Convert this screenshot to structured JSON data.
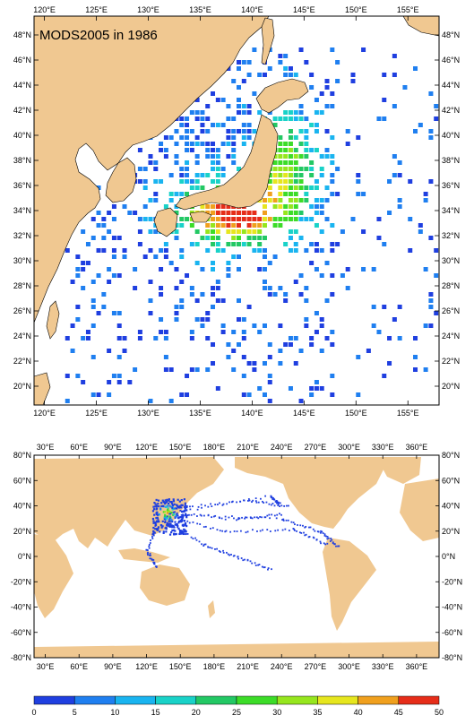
{
  "top_map": {
    "title": "MODS2005 in 1986",
    "lon_labels": [
      "120°E",
      "125°E",
      "130°E",
      "135°E",
      "140°E",
      "145°E",
      "150°E",
      "155°E"
    ],
    "lat_labels": [
      "48°N",
      "46°N",
      "44°N",
      "42°N",
      "40°N",
      "38°N",
      "36°N",
      "34°N",
      "32°N",
      "30°N",
      "28°N",
      "26°N",
      "24°N",
      "22°N",
      "20°N"
    ],
    "lon_range": [
      119,
      158
    ],
    "lat_range": [
      18.5,
      49.5
    ]
  },
  "bottom_map": {
    "lon_labels": [
      "30°E",
      "60°E",
      "90°E",
      "120°E",
      "150°E",
      "180°E",
      "210°E",
      "240°E",
      "270°E",
      "300°E",
      "330°E",
      "360°E"
    ],
    "lat_labels": [
      "80°N",
      "60°N",
      "40°N",
      "20°N",
      "0°N",
      "-20°N",
      "-40°N",
      "-60°N",
      "-80°N"
    ],
    "lon_range": [
      20,
      380
    ],
    "lat_range": [
      -80,
      80
    ]
  },
  "colorbar": {
    "labels": [
      "0",
      "5",
      "10",
      "15",
      "20",
      "25",
      "30",
      "35",
      "40",
      "45",
      "50"
    ],
    "colors": [
      "#1f3fe0",
      "#1f7ff0",
      "#19b4f0",
      "#19d2c8",
      "#23c864",
      "#3cdc28",
      "#96e61e",
      "#e6e61e",
      "#f0a01e",
      "#e62d19"
    ]
  },
  "palette": {
    "land": "#f0c891",
    "coast": "#000000",
    "sea": "#ffffff"
  }
}
